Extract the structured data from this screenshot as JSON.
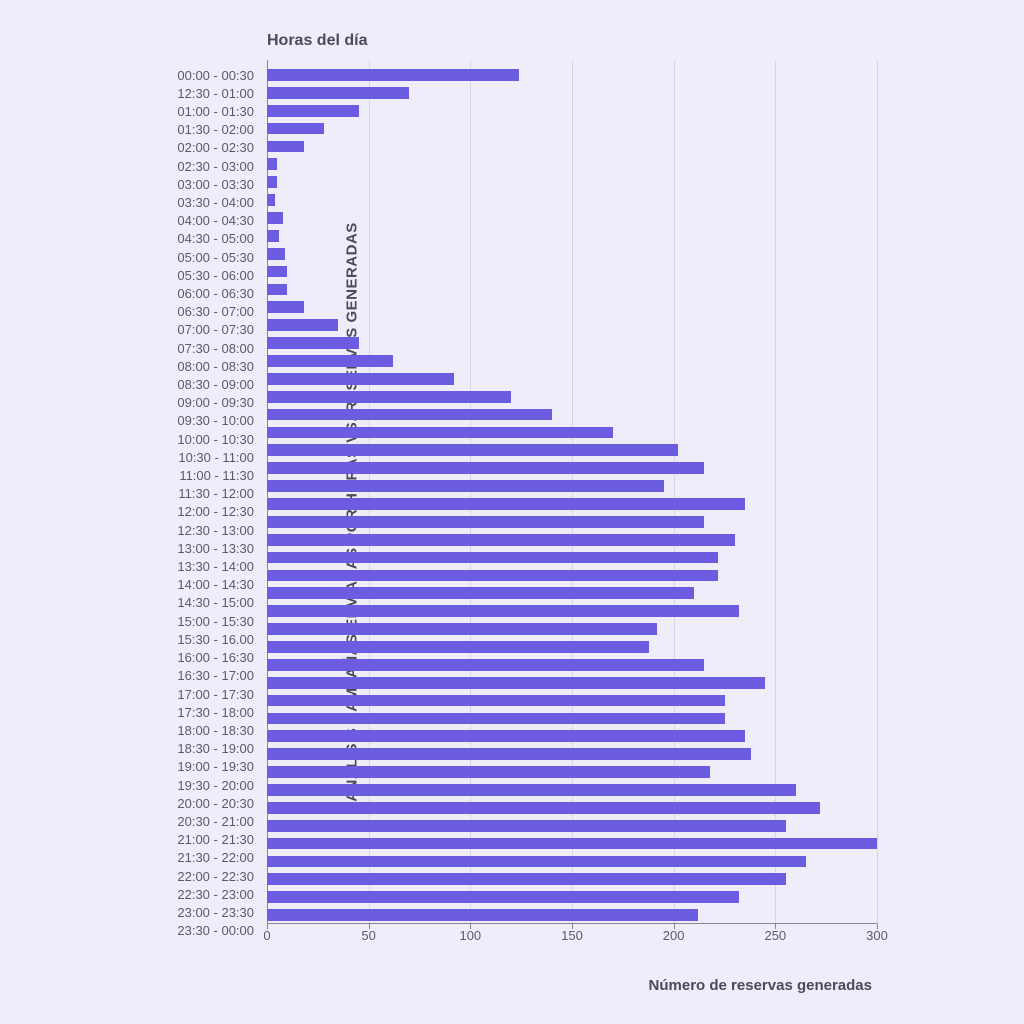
{
  "chart": {
    "type": "bar-horizontal",
    "title": "Horas del día",
    "y_axis_title": "ANÁLISIS CAMPAÑAS ENVIADAS POR HORAS VS. RESERVAS GENERADAS",
    "x_axis_title": "Número de reservas generadas",
    "bar_color": "#6b5ce0",
    "background_color": "#f0edfb",
    "grid_color": "#d8d4e8",
    "text_color": "#4a4a5a",
    "xlim": [
      0,
      300
    ],
    "xtick_step": 50,
    "xticks": [
      0,
      50,
      100,
      150,
      200,
      250,
      300
    ],
    "title_fontsize": 16,
    "label_fontsize": 13,
    "axis_title_fontsize": 15,
    "data": [
      {
        "label": "00:00 - 00:30",
        "value": 124
      },
      {
        "label": "12:30 - 01:00",
        "value": 70
      },
      {
        "label": "01:00 - 01:30",
        "value": 45
      },
      {
        "label": "01:30 - 02:00",
        "value": 28
      },
      {
        "label": "02:00 - 02:30",
        "value": 18
      },
      {
        "label": "02:30 - 03:00",
        "value": 5
      },
      {
        "label": "03:00 - 03:30",
        "value": 5
      },
      {
        "label": "03:30 - 04:00",
        "value": 4
      },
      {
        "label": "04:00 - 04:30",
        "value": 8
      },
      {
        "label": "04:30 - 05:00",
        "value": 6
      },
      {
        "label": "05:00 - 05:30",
        "value": 9
      },
      {
        "label": "05:30 - 06:00",
        "value": 10
      },
      {
        "label": "06:00 - 06:30",
        "value": 10
      },
      {
        "label": "06:30 - 07:00",
        "value": 18
      },
      {
        "label": "07:00 - 07:30",
        "value": 35
      },
      {
        "label": "07:30 - 08:00",
        "value": 45
      },
      {
        "label": "08:00 - 08:30",
        "value": 62
      },
      {
        "label": "08:30 - 09:00",
        "value": 92
      },
      {
        "label": "09:00 - 09:30",
        "value": 120
      },
      {
        "label": "09:30 - 10:00",
        "value": 140
      },
      {
        "label": "10:00 - 10:30",
        "value": 170
      },
      {
        "label": "10:30 - 11:00",
        "value": 202
      },
      {
        "label": "11:00 - 11:30",
        "value": 215
      },
      {
        "label": "11:30 - 12:00",
        "value": 195
      },
      {
        "label": "12:00 - 12:30",
        "value": 235
      },
      {
        "label": "12:30 - 13:00",
        "value": 215
      },
      {
        "label": "13:00 - 13:30",
        "value": 230
      },
      {
        "label": "13:30 - 14:00",
        "value": 222
      },
      {
        "label": "14:00 - 14:30",
        "value": 222
      },
      {
        "label": "14:30 - 15:00",
        "value": 210
      },
      {
        "label": "15:00 - 15:30",
        "value": 232
      },
      {
        "label": "15:30 - 16.00",
        "value": 192
      },
      {
        "label": "16:00 - 16:30",
        "value": 188
      },
      {
        "label": "16:30 - 17:00",
        "value": 215
      },
      {
        "label": "17:00 - 17:30",
        "value": 245
      },
      {
        "label": "17:30 - 18:00",
        "value": 225
      },
      {
        "label": "18:00 - 18:30",
        "value": 225
      },
      {
        "label": "18:30 - 19:00",
        "value": 235
      },
      {
        "label": "19:00 - 19:30",
        "value": 238
      },
      {
        "label": "19:30 - 20:00",
        "value": 218
      },
      {
        "label": "20:00 - 20:30",
        "value": 260
      },
      {
        "label": "20:30 - 21:00",
        "value": 272
      },
      {
        "label": "21:00 - 21:30",
        "value": 255
      },
      {
        "label": "21:30 - 22:00",
        "value": 300
      },
      {
        "label": "22:00 - 22:30",
        "value": 265
      },
      {
        "label": "22:30 - 23:00",
        "value": 255
      },
      {
        "label": "23:00 - 23:30",
        "value": 232
      },
      {
        "label": "23:30 - 00:00",
        "value": 212
      }
    ]
  }
}
